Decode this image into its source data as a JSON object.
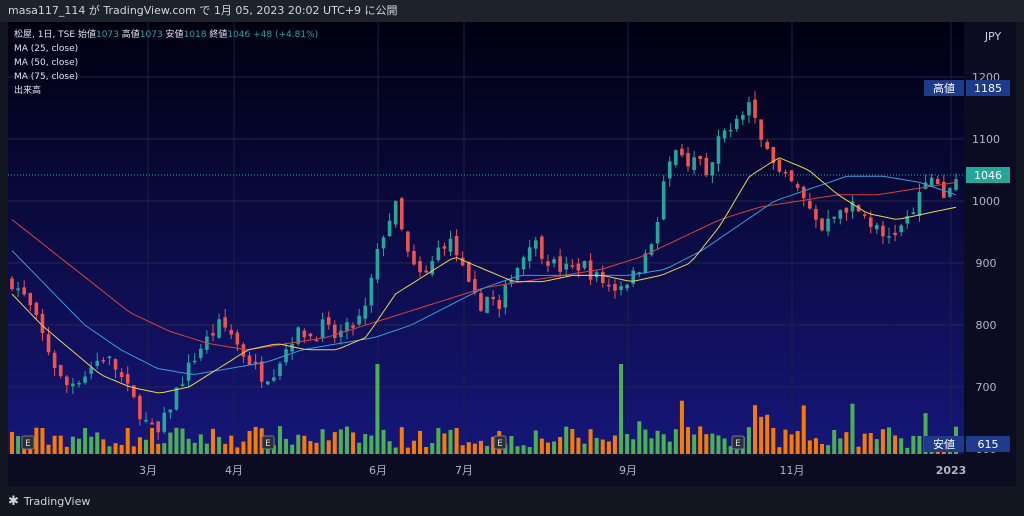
{
  "header": {
    "publish_info": "masa117_114 が TradingView.com で 1月 05, 2023 20:02 UTC+9 に公開"
  },
  "legend": {
    "symbol": "松屋, 1日, TSE",
    "open_label": "始値",
    "open_value": "1073",
    "high_label": "高値",
    "high_value": "1073",
    "low_label": "安値",
    "low_value": "1018",
    "close_label": "終値",
    "close_value": "1046",
    "change": "+48 (+4.81%)",
    "indicators": [
      "MA (25, close)",
      "MA (50, close)",
      "MA (75, close)",
      "出来高"
    ]
  },
  "price_axis": {
    "currency": "JPY",
    "ticks": [
      "1200",
      "1100",
      "1000",
      "900",
      "800",
      "700",
      "600"
    ],
    "high_label": "高値",
    "high_value": "1185",
    "last_value": "1046",
    "low_label": "安値",
    "low_value": "615"
  },
  "time_axis": {
    "ticks": [
      "3月",
      "4月",
      "6月",
      "7月",
      "9月",
      "11月",
      "2023"
    ]
  },
  "earnings_marker": "E",
  "footer": {
    "brand": "TradingView"
  },
  "colors": {
    "background": "#0b0b2a",
    "up": "#26a69a",
    "down": "#ef5350",
    "ma25": "#e8d44d",
    "ma50": "#3b9ad9",
    "ma75": "#d9403b",
    "vol_up": "#4caf50",
    "vol_down": "#f57c00",
    "label_bg": "#1e3a8a"
  },
  "chart_data": {
    "type": "candlestick",
    "title": "松屋, 1日, TSE",
    "ylabel": "JPY",
    "ylim": [
      600,
      1230
    ],
    "x_ticks": [
      "3月",
      "4月",
      "6月",
      "7月",
      "9月",
      "11月",
      "2023"
    ],
    "ohlc_anchor_closes": [
      870,
      850,
      820,
      780,
      740,
      700,
      710,
      720,
      740,
      750,
      730,
      700,
      670,
      640,
      620,
      660,
      700,
      730,
      760,
      780,
      800,
      790,
      760,
      740,
      720,
      720,
      750,
      780,
      790,
      780,
      800,
      780,
      790,
      800,
      820,
      900,
      960,
      990,
      920,
      880,
      880,
      920,
      940,
      910,
      860,
      830,
      850,
      820,
      880,
      900,
      940,
      920,
      900,
      890,
      890,
      900,
      880,
      870,
      860,
      870,
      880,
      910,
      950,
      1050,
      1070,
      1060,
      1080,
      1030,
      1090,
      1120,
      1140,
      1160,
      1120,
      1070,
      1040,
      1030,
      1010,
      980,
      950,
      970,
      990,
      990,
      980,
      960,
      940,
      950,
      960,
      990,
      1020,
      1040,
      1000,
      1046
    ],
    "last": {
      "open": 1073,
      "high": 1073,
      "low": 1018,
      "close": 1046,
      "change": 48,
      "change_pct": 4.81
    },
    "period_high": 1185,
    "period_low": 615,
    "ma25_anchors": [
      850,
      800,
      760,
      720,
      700,
      690,
      700,
      730,
      760,
      770,
      760,
      760,
      780,
      850,
      880,
      910,
      890,
      870,
      870,
      880,
      880,
      870,
      880,
      900,
      960,
      1040,
      1070,
      1050,
      1010,
      980,
      970,
      980,
      990
    ],
    "ma50_anchors": [
      920,
      860,
      800,
      760,
      730,
      720,
      730,
      740,
      760,
      770,
      780,
      800,
      830,
      860,
      880,
      880,
      880,
      880,
      890,
      920,
      960,
      1000,
      1020,
      1040,
      1040,
      1030,
      1010
    ],
    "ma75_anchors": [
      970,
      920,
      870,
      820,
      790,
      770,
      760,
      770,
      780,
      800,
      820,
      840,
      860,
      870,
      880,
      890,
      910,
      940,
      970,
      990,
      1000,
      1010,
      1010,
      1020,
      1030
    ]
  }
}
